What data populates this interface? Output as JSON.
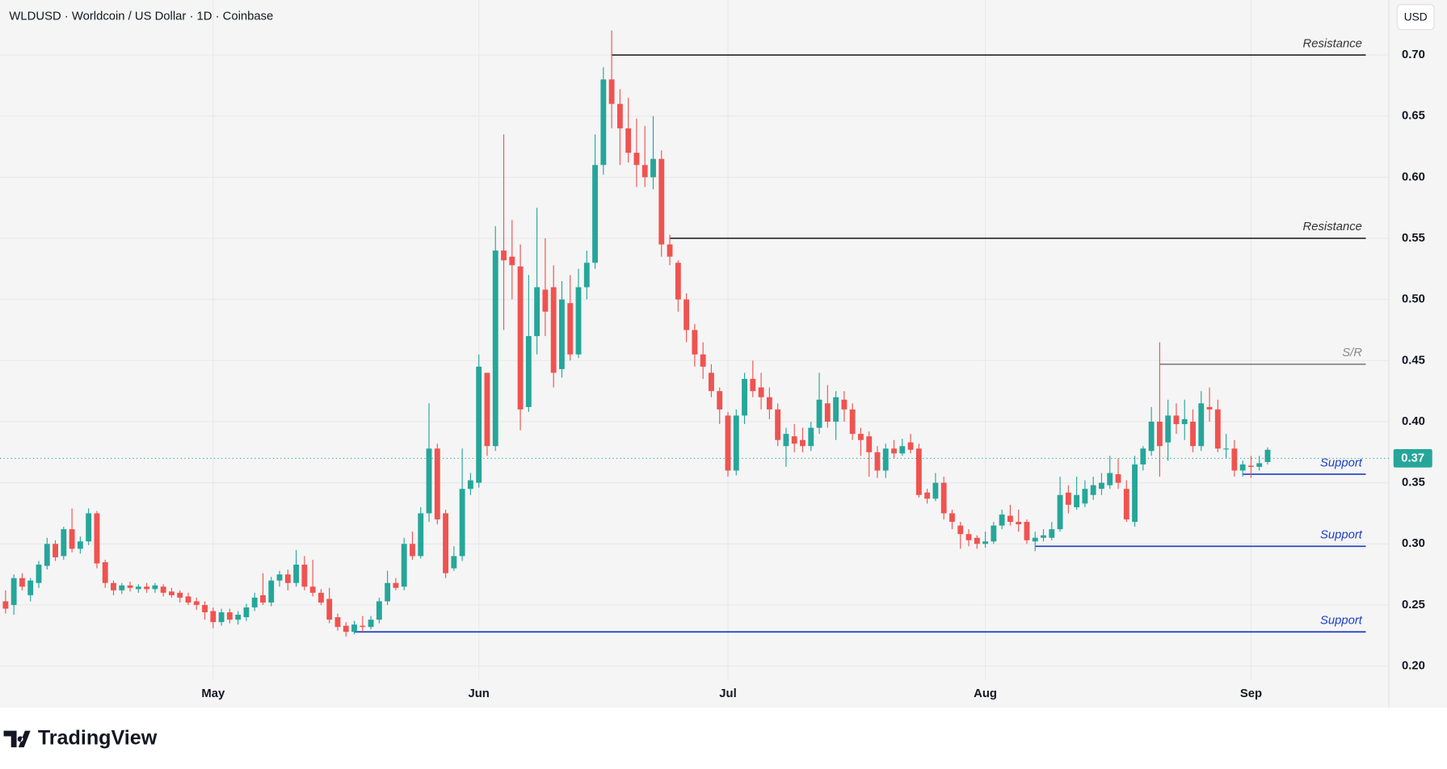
{
  "header": "WLDUSD · Worldcoin / US Dollar · 1D · Coinbase",
  "currency": "USD",
  "logo": "TradingView",
  "chart_data": {
    "type": "candlestick",
    "up_color": "#26a69a",
    "down_color": "#ef5350",
    "grid": true,
    "xlim": [
      -0.67,
      166.6
    ],
    "ylim": [
      0.166,
      0.745
    ],
    "xticks": [
      {
        "value": 25,
        "label": "May"
      },
      {
        "value": 57,
        "label": "Jun"
      },
      {
        "value": 87,
        "label": "Jul"
      },
      {
        "value": 118,
        "label": "Aug"
      },
      {
        "value": 150,
        "label": "Sep"
      }
    ],
    "yticks": [
      {
        "value": 0.2,
        "label": "0.20"
      },
      0.25,
      {
        "value": 0.3,
        "label": "0.30"
      },
      0.35,
      {
        "value": 0.4,
        "label": "0.40"
      },
      0.45,
      {
        "value": 0.5,
        "label": "0.50"
      },
      0.55,
      {
        "value": 0.6,
        "label": "0.60"
      },
      0.65,
      {
        "value": 0.7,
        "label": "0.70"
      }
    ],
    "last_price": 0.37,
    "levels": [
      {
        "label": "Resistance",
        "value": 0.7,
        "from": 73,
        "color": "#333333"
      },
      {
        "label": "Resistance",
        "value": 0.55,
        "from": 80,
        "color": "#333333"
      },
      {
        "label": "S/R",
        "value": 0.447,
        "from": 139,
        "color": "#8a8a8a"
      },
      {
        "label": "Support",
        "value": 0.357,
        "from": 149,
        "color": "#1c3fc4"
      },
      {
        "label": "Support",
        "value": 0.298,
        "from": 124,
        "color": "#1c3fc4"
      },
      {
        "label": "Support",
        "value": 0.228,
        "from": 42,
        "color": "#1c3fc4"
      }
    ],
    "ohlc": [
      [
        0.253,
        0.262,
        0.243,
        0.247
      ],
      [
        0.25,
        0.275,
        0.242,
        0.272
      ],
      [
        0.272,
        0.276,
        0.262,
        0.265
      ],
      [
        0.258,
        0.272,
        0.253,
        0.27
      ],
      [
        0.268,
        0.286,
        0.264,
        0.283
      ],
      [
        0.282,
        0.305,
        0.279,
        0.3
      ],
      [
        0.3,
        0.303,
        0.286,
        0.289
      ],
      [
        0.29,
        0.314,
        0.287,
        0.312
      ],
      [
        0.312,
        0.329,
        0.293,
        0.296
      ],
      [
        0.296,
        0.306,
        0.292,
        0.302
      ],
      [
        0.302,
        0.329,
        0.299,
        0.325
      ],
      [
        0.325,
        0.327,
        0.28,
        0.284
      ],
      [
        0.285,
        0.287,
        0.264,
        0.268
      ],
      [
        0.268,
        0.27,
        0.258,
        0.262
      ],
      [
        0.262,
        0.268,
        0.259,
        0.266
      ],
      [
        0.266,
        0.269,
        0.261,
        0.264
      ],
      [
        0.263,
        0.267,
        0.26,
        0.265
      ],
      [
        0.265,
        0.268,
        0.26,
        0.263
      ],
      [
        0.263,
        0.268,
        0.26,
        0.266
      ],
      [
        0.265,
        0.267,
        0.257,
        0.26
      ],
      [
        0.261,
        0.264,
        0.256,
        0.258
      ],
      [
        0.26,
        0.262,
        0.252,
        0.256
      ],
      [
        0.257,
        0.26,
        0.25,
        0.252
      ],
      [
        0.253,
        0.256,
        0.246,
        0.25
      ],
      [
        0.25,
        0.253,
        0.238,
        0.244
      ],
      [
        0.245,
        0.248,
        0.231,
        0.236
      ],
      [
        0.236,
        0.247,
        0.233,
        0.244
      ],
      [
        0.244,
        0.247,
        0.235,
        0.238
      ],
      [
        0.238,
        0.245,
        0.234,
        0.242
      ],
      [
        0.24,
        0.251,
        0.237,
        0.248
      ],
      [
        0.248,
        0.26,
        0.245,
        0.256
      ],
      [
        0.258,
        0.276,
        0.25,
        0.252
      ],
      [
        0.252,
        0.273,
        0.249,
        0.27
      ],
      [
        0.27,
        0.278,
        0.265,
        0.275
      ],
      [
        0.275,
        0.279,
        0.262,
        0.268
      ],
      [
        0.268,
        0.295,
        0.265,
        0.283
      ],
      [
        0.283,
        0.29,
        0.262,
        0.265
      ],
      [
        0.265,
        0.287,
        0.257,
        0.26
      ],
      [
        0.26,
        0.263,
        0.25,
        0.252
      ],
      [
        0.255,
        0.264,
        0.235,
        0.238
      ],
      [
        0.24,
        0.243,
        0.229,
        0.232
      ],
      [
        0.233,
        0.236,
        0.224,
        0.228
      ],
      [
        0.228,
        0.237,
        0.226,
        0.234
      ],
      [
        0.233,
        0.241,
        0.228,
        0.232
      ],
      [
        0.232,
        0.241,
        0.23,
        0.238
      ],
      [
        0.238,
        0.256,
        0.235,
        0.253
      ],
      [
        0.253,
        0.278,
        0.25,
        0.268
      ],
      [
        0.268,
        0.272,
        0.262,
        0.264
      ],
      [
        0.265,
        0.305,
        0.262,
        0.3
      ],
      [
        0.3,
        0.31,
        0.287,
        0.29
      ],
      [
        0.29,
        0.33,
        0.288,
        0.325
      ],
      [
        0.325,
        0.415,
        0.318,
        0.378
      ],
      [
        0.378,
        0.382,
        0.316,
        0.32
      ],
      [
        0.325,
        0.328,
        0.272,
        0.276
      ],
      [
        0.28,
        0.298,
        0.278,
        0.29
      ],
      [
        0.29,
        0.378,
        0.286,
        0.345
      ],
      [
        0.345,
        0.358,
        0.34,
        0.352
      ],
      [
        0.35,
        0.455,
        0.346,
        0.445
      ],
      [
        0.44,
        0.44,
        0.372,
        0.38
      ],
      [
        0.38,
        0.56,
        0.376,
        0.54
      ],
      [
        0.54,
        0.635,
        0.475,
        0.532
      ],
      [
        0.535,
        0.565,
        0.5,
        0.528
      ],
      [
        0.527,
        0.545,
        0.393,
        0.41
      ],
      [
        0.412,
        0.52,
        0.408,
        0.47
      ],
      [
        0.47,
        0.575,
        0.455,
        0.51
      ],
      [
        0.508,
        0.55,
        0.47,
        0.49
      ],
      [
        0.51,
        0.528,
        0.428,
        0.44
      ],
      [
        0.443,
        0.515,
        0.436,
        0.5
      ],
      [
        0.497,
        0.52,
        0.45,
        0.455
      ],
      [
        0.455,
        0.525,
        0.452,
        0.51
      ],
      [
        0.51,
        0.54,
        0.5,
        0.53
      ],
      [
        0.53,
        0.635,
        0.525,
        0.61
      ],
      [
        0.61,
        0.69,
        0.602,
        0.68
      ],
      [
        0.68,
        0.72,
        0.64,
        0.66
      ],
      [
        0.66,
        0.672,
        0.61,
        0.64
      ],
      [
        0.64,
        0.665,
        0.612,
        0.62
      ],
      [
        0.62,
        0.648,
        0.592,
        0.61
      ],
      [
        0.61,
        0.642,
        0.592,
        0.6
      ],
      [
        0.6,
        0.65,
        0.59,
        0.615
      ],
      [
        0.615,
        0.622,
        0.535,
        0.545
      ],
      [
        0.545,
        0.553,
        0.528,
        0.535
      ],
      [
        0.53,
        0.532,
        0.49,
        0.5
      ],
      [
        0.5,
        0.505,
        0.465,
        0.475
      ],
      [
        0.475,
        0.48,
        0.445,
        0.455
      ],
      [
        0.455,
        0.465,
        0.435,
        0.445
      ],
      [
        0.44,
        0.447,
        0.42,
        0.425
      ],
      [
        0.425,
        0.428,
        0.398,
        0.41
      ],
      [
        0.405,
        0.408,
        0.355,
        0.36
      ],
      [
        0.36,
        0.41,
        0.356,
        0.405
      ],
      [
        0.405,
        0.44,
        0.398,
        0.435
      ],
      [
        0.435,
        0.45,
        0.42,
        0.425
      ],
      [
        0.428,
        0.44,
        0.41,
        0.42
      ],
      [
        0.42,
        0.428,
        0.402,
        0.41
      ],
      [
        0.41,
        0.415,
        0.38,
        0.385
      ],
      [
        0.38,
        0.395,
        0.363,
        0.39
      ],
      [
        0.388,
        0.398,
        0.375,
        0.382
      ],
      [
        0.385,
        0.395,
        0.375,
        0.38
      ],
      [
        0.38,
        0.4,
        0.376,
        0.395
      ],
      [
        0.395,
        0.44,
        0.39,
        0.418
      ],
      [
        0.415,
        0.43,
        0.395,
        0.4
      ],
      [
        0.4,
        0.425,
        0.385,
        0.42
      ],
      [
        0.418,
        0.425,
        0.4,
        0.41
      ],
      [
        0.41,
        0.415,
        0.385,
        0.39
      ],
      [
        0.39,
        0.395,
        0.372,
        0.385
      ],
      [
        0.388,
        0.392,
        0.355,
        0.375
      ],
      [
        0.375,
        0.38,
        0.354,
        0.36
      ],
      [
        0.36,
        0.382,
        0.354,
        0.378
      ],
      [
        0.378,
        0.385,
        0.37,
        0.374
      ],
      [
        0.374,
        0.386,
        0.372,
        0.38
      ],
      [
        0.383,
        0.39,
        0.374,
        0.377
      ],
      [
        0.378,
        0.382,
        0.338,
        0.34
      ],
      [
        0.342,
        0.345,
        0.333,
        0.337
      ],
      [
        0.337,
        0.358,
        0.335,
        0.35
      ],
      [
        0.35,
        0.355,
        0.32,
        0.325
      ],
      [
        0.325,
        0.328,
        0.312,
        0.318
      ],
      [
        0.315,
        0.318,
        0.296,
        0.308
      ],
      [
        0.308,
        0.312,
        0.298,
        0.303
      ],
      [
        0.305,
        0.307,
        0.296,
        0.3
      ],
      [
        0.3,
        0.31,
        0.297,
        0.302
      ],
      [
        0.302,
        0.318,
        0.3,
        0.315
      ],
      [
        0.315,
        0.328,
        0.312,
        0.324
      ],
      [
        0.323,
        0.332,
        0.315,
        0.318
      ],
      [
        0.318,
        0.328,
        0.31,
        0.316
      ],
      [
        0.318,
        0.32,
        0.3,
        0.303
      ],
      [
        0.302,
        0.31,
        0.294,
        0.305
      ],
      [
        0.305,
        0.312,
        0.302,
        0.307
      ],
      [
        0.305,
        0.318,
        0.303,
        0.312
      ],
      [
        0.312,
        0.355,
        0.31,
        0.34
      ],
      [
        0.342,
        0.348,
        0.325,
        0.332
      ],
      [
        0.33,
        0.355,
        0.328,
        0.34
      ],
      [
        0.333,
        0.352,
        0.33,
        0.345
      ],
      [
        0.34,
        0.355,
        0.336,
        0.348
      ],
      [
        0.345,
        0.358,
        0.34,
        0.35
      ],
      [
        0.348,
        0.372,
        0.345,
        0.358
      ],
      [
        0.357,
        0.37,
        0.345,
        0.35
      ],
      [
        0.345,
        0.352,
        0.318,
        0.32
      ],
      [
        0.318,
        0.372,
        0.314,
        0.365
      ],
      [
        0.365,
        0.38,
        0.36,
        0.378
      ],
      [
        0.376,
        0.412,
        0.372,
        0.4
      ],
      [
        0.4,
        0.465,
        0.355,
        0.38
      ],
      [
        0.383,
        0.418,
        0.368,
        0.405
      ],
      [
        0.405,
        0.415,
        0.39,
        0.398
      ],
      [
        0.398,
        0.418,
        0.385,
        0.402
      ],
      [
        0.4,
        0.41,
        0.375,
        0.38
      ],
      [
        0.38,
        0.425,
        0.376,
        0.415
      ],
      [
        0.412,
        0.428,
        0.4,
        0.41
      ],
      [
        0.41,
        0.418,
        0.375,
        0.378
      ],
      [
        0.378,
        0.39,
        0.37,
        0.378
      ],
      [
        0.378,
        0.385,
        0.355,
        0.36
      ],
      [
        0.36,
        0.368,
        0.355,
        0.365
      ],
      [
        0.364,
        0.372,
        0.354,
        0.363
      ],
      [
        0.363,
        0.372,
        0.36,
        0.366
      ],
      [
        0.367,
        0.379,
        0.365,
        0.377
      ]
    ]
  }
}
